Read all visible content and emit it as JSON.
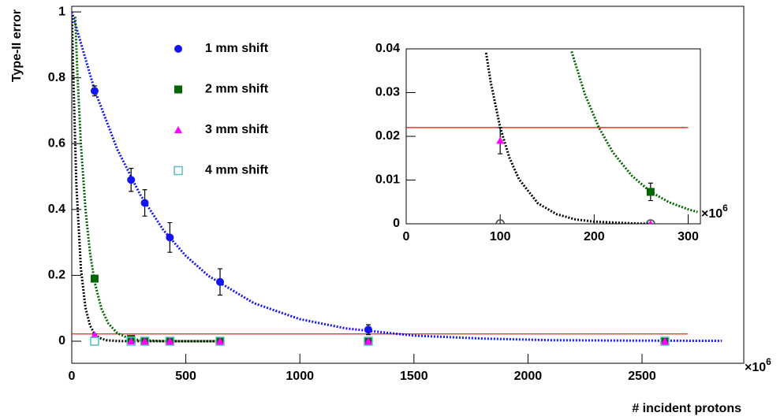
{
  "chart_data": [
    {
      "type": "scatter",
      "xlabel": "# incident protons",
      "ylabel": "Type-II error",
      "x_multiplier": {
        "base": "×10",
        "exponent": "6"
      },
      "xlim": [
        0,
        2946
      ],
      "ylim": [
        -0.067,
        1.017
      ],
      "xticks": [
        0,
        500,
        1000,
        1500,
        2000,
        2500
      ],
      "yticks": [
        0,
        0.2,
        0.4,
        0.6,
        0.8,
        1
      ],
      "legend": "upper-left",
      "threshold": {
        "y": 0.022,
        "x": [
          0,
          2700
        ],
        "color": "#ff0000"
      },
      "series": [
        {
          "name": "1 mm shift",
          "color": "#1414f0",
          "marker": "circle",
          "x": [
            100,
            260,
            320,
            430,
            650,
            1300,
            2600
          ],
          "y": [
            0.76,
            0.49,
            0.42,
            0.315,
            0.18,
            0.035,
            0
          ],
          "errors": [
            0.015,
            0.035,
            0.04,
            0.045,
            0.04,
            0.015,
            0
          ],
          "fit": {
            "color": "#1414f0",
            "x": [
              0,
              100,
              200,
              300,
              400,
              500,
              600,
              800,
              1000,
              1200,
              1500,
              1800,
              2100,
              2400,
              2850
            ],
            "y": [
              1,
              0.763,
              0.582,
              0.445,
              0.339,
              0.259,
              0.198,
              0.115,
              0.067,
              0.039,
              0.017,
              0.008,
              0.003,
              0.002,
              0.001
            ]
          }
        },
        {
          "name": "2 mm shift",
          "color": "#006400",
          "marker": "square",
          "x": [
            100,
            260,
            320,
            430,
            650,
            1300,
            2600
          ],
          "y": [
            0.19,
            0.0073,
            0,
            0,
            0,
            0,
            0
          ],
          "errors": [
            0.01,
            0.002,
            0,
            0,
            0,
            0,
            0
          ],
          "fit": {
            "color": "#006400",
            "x": [
              15,
              25,
              40,
              60,
              80,
              100,
              130,
              160,
              200,
              250,
              300,
              400,
              500,
              650
            ],
            "y": [
              0.985,
              0.807,
              0.598,
              0.401,
              0.269,
              0.18,
              0.099,
              0.054,
              0.024,
              0.009,
              0.003,
              0.0004,
              0,
              0
            ]
          }
        },
        {
          "name": "3 mm shift",
          "color": "#ff00ff",
          "marker": "triangle",
          "x": [
            100,
            260,
            320,
            430,
            650,
            1300,
            2600
          ],
          "y": [
            0.019,
            0,
            0,
            0,
            0,
            0,
            0
          ],
          "errors": [
            0.003,
            0,
            0,
            0,
            0,
            0,
            0
          ],
          "fit": {
            "color": "#000000",
            "x": [
              1,
              5,
              20,
              40,
              60,
              80,
              100,
              120,
              150,
              200,
              260,
              400,
              650
            ],
            "y": [
              0.99,
              0.849,
              0.477,
              0.221,
              0.102,
              0.0475,
              0.022,
              0.0102,
              0.0032,
              0.0005,
              0,
              0,
              0
            ]
          }
        },
        {
          "name": "4 mm shift",
          "color": "#5bbcc4",
          "marker": "open-square",
          "x": [
            100,
            260,
            320,
            430,
            650,
            1300,
            2600
          ],
          "y": [
            0,
            0,
            0,
            0,
            0,
            0,
            0
          ],
          "errors": [
            0,
            0,
            0,
            0,
            0,
            0,
            0
          ]
        }
      ]
    },
    {
      "type": "scatter",
      "x_multiplier": {
        "base": "×10",
        "exponent": "6"
      },
      "xlim": [
        0,
        313
      ],
      "ylim": [
        0,
        0.04
      ],
      "xticks": [
        0,
        100,
        200,
        300
      ],
      "yticks": [
        0,
        0.01,
        0.02,
        0.03,
        0.04
      ],
      "threshold": {
        "y": 0.022,
        "x": [
          0,
          300
        ],
        "color": "#ff0000"
      },
      "series": [
        {
          "color": "#444444",
          "marker": "open-circle",
          "x": [
            100,
            260
          ],
          "y": [
            0,
            0
          ],
          "errors": [
            0,
            0
          ]
        },
        {
          "color": "#006400",
          "marker": "square",
          "x": [
            260
          ],
          "y": [
            0.0073
          ],
          "errors": [
            0.002
          ],
          "fit": {
            "color": "#006400",
            "x": [
              176,
              190,
              205,
              220,
              240,
              260,
              280,
              300,
              310
            ],
            "y": [
              0.0394,
              0.0297,
              0.022,
              0.0163,
              0.011,
              0.0073,
              0.0049,
              0.0033,
              0.0027
            ]
          }
        },
        {
          "color": "#ff00ff",
          "marker": "triangle",
          "x": [
            100,
            260
          ],
          "y": [
            0.019,
            0
          ],
          "errors": [
            0.003,
            0
          ],
          "fit": {
            "color": "#000000",
            "x": [
              85,
              90,
              100,
              110,
              120,
              140,
              160,
              180,
              200,
              240,
              260
            ],
            "y": [
              0.0391,
              0.0323,
              0.022,
              0.015,
              0.0102,
              0.0047,
              0.0022,
              0.001,
              0.0005,
              0.0001,
              0
            ]
          }
        }
      ]
    }
  ]
}
